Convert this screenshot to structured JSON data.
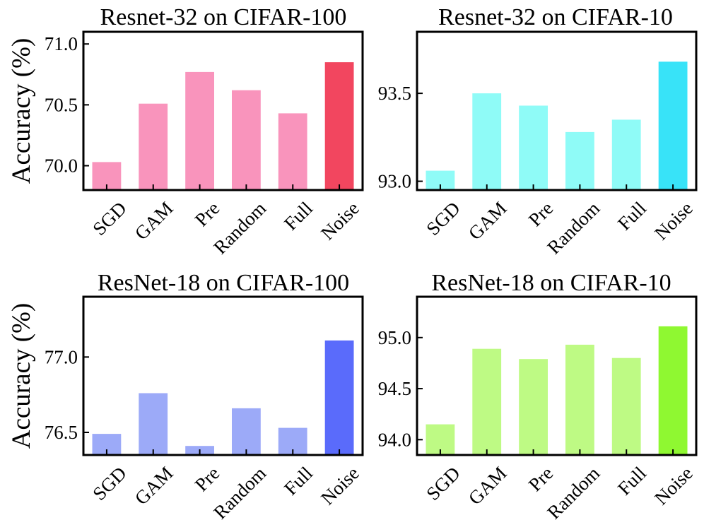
{
  "chart_data": [
    {
      "type": "bar",
      "title": "Resnet-32 on CIFAR-100",
      "ylabel": "Accuracy (%)",
      "categories": [
        "SGD",
        "GAM",
        "Pre",
        "Random",
        "Full",
        "Noise"
      ],
      "values": [
        70.03,
        70.51,
        70.77,
        70.62,
        70.43,
        70.85
      ],
      "ylim": [
        69.8,
        71.1
      ],
      "yticks": [
        70.0,
        70.5,
        71.0
      ],
      "ytick_labels": [
        "70.0",
        "70.5",
        "71.0"
      ],
      "colors": [
        "#f994bc",
        "#f994bc",
        "#f994bc",
        "#f994bc",
        "#f994bc",
        "#f2465f"
      ]
    },
    {
      "type": "bar",
      "title": "Resnet-32 on CIFAR-10",
      "ylabel": "",
      "categories": [
        "SGD",
        "GAM",
        "Pre",
        "Random",
        "Full",
        "Noise"
      ],
      "values": [
        93.06,
        93.5,
        93.43,
        93.28,
        93.35,
        93.68
      ],
      "ylim": [
        92.95,
        93.85
      ],
      "yticks": [
        93.0,
        93.5
      ],
      "ytick_labels": [
        "93.0",
        "93.5"
      ],
      "colors": [
        "#8ffbf7",
        "#8ffbf7",
        "#8ffbf7",
        "#8ffbf7",
        "#8ffbf7",
        "#38e3f8"
      ]
    },
    {
      "type": "bar",
      "title": "ResNet-18 on CIFAR-100",
      "ylabel": "Accuracy (%)",
      "categories": [
        "SGD",
        "GAM",
        "Pre",
        "Random",
        "Full",
        "Noise"
      ],
      "values": [
        76.49,
        76.76,
        76.41,
        76.66,
        76.53,
        77.11
      ],
      "ylim": [
        76.35,
        77.4
      ],
      "yticks": [
        76.5,
        77.0
      ],
      "ytick_labels": [
        "76.5",
        "77.0"
      ],
      "colors": [
        "#9caaf8",
        "#9caaf8",
        "#9caaf8",
        "#9caaf8",
        "#9caaf8",
        "#5a6bfb"
      ]
    },
    {
      "type": "bar",
      "title": "ResNet-18 on CIFAR-10",
      "ylabel": "",
      "categories": [
        "SGD",
        "GAM",
        "Pre",
        "Random",
        "Full",
        "Noise"
      ],
      "values": [
        94.15,
        94.89,
        94.79,
        94.93,
        94.8,
        95.11
      ],
      "ylim": [
        93.85,
        95.4
      ],
      "yticks": [
        94.0,
        94.5,
        95.0
      ],
      "ytick_labels": [
        "94.0",
        "94.5",
        "95.0"
      ],
      "colors": [
        "#befa84",
        "#befa84",
        "#befa84",
        "#befa84",
        "#befa84",
        "#8ff831"
      ]
    }
  ]
}
